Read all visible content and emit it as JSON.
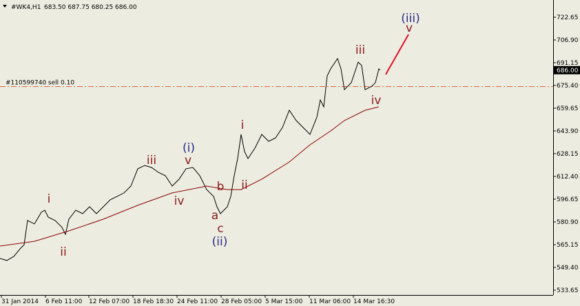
{
  "chart_data": {
    "type": "line",
    "symbol": "#WK4,H1",
    "ohlc": "683.50 687.75 680.25 686.00",
    "x": [
      0,
      10,
      20,
      30,
      35,
      40,
      50,
      60,
      65,
      70,
      80,
      90,
      95,
      100,
      110,
      120,
      130,
      140,
      150,
      160,
      170,
      180,
      190,
      200,
      210,
      220,
      230,
      240,
      250,
      260,
      270,
      280,
      290,
      300,
      310,
      315,
      320,
      330,
      335,
      340,
      345,
      350,
      355,
      360,
      370,
      380,
      390,
      400,
      410,
      420,
      430,
      440,
      450,
      460,
      465,
      470,
      475,
      480,
      490,
      495,
      500,
      510,
      520,
      525,
      530,
      540,
      545,
      550,
      552
    ],
    "series": [
      {
        "name": "price",
        "color": "#000000",
        "values": [
          555.6,
          554.2,
          557.0,
          562.7,
          565.1,
          581.9,
          579.5,
          587.6,
          589.0,
          584.2,
          581.9,
          577.1,
          572.3,
          582.8,
          589.0,
          586.6,
          591.4,
          586.6,
          591.4,
          596.2,
          598.6,
          601.0,
          605.7,
          617.7,
          620.0,
          618.6,
          615.2,
          612.9,
          605.7,
          610.5,
          617.7,
          618.6,
          612.9,
          603.3,
          598.6,
          591.4,
          586.6,
          591.4,
          598.6,
          612.9,
          624.8,
          641.5,
          629.6,
          624.8,
          631.9,
          641.5,
          636.7,
          639.1,
          646.3,
          658.2,
          651.1,
          646.3,
          641.5,
          653.4,
          665.4,
          660.6,
          682.1,
          686.9,
          694.0,
          686.9,
          672.5,
          677.4,
          691.6,
          689.3,
          672.5,
          674.9,
          677.4,
          686.9,
          686.0
        ]
      },
      {
        "name": "moving-average",
        "color": "#8b0000",
        "x": [
          0,
          50,
          100,
          150,
          200,
          250,
          300,
          330,
          350,
          380,
          420,
          450,
          480,
          500,
          530,
          550
        ],
        "values": [
          564.2,
          567.5,
          574.7,
          582.8,
          592.4,
          601.0,
          605.7,
          603.3,
          603.3,
          610.5,
          622.4,
          634.3,
          643.9,
          651.1,
          658.2,
          660.6
        ]
      }
    ],
    "xlim": [
      0,
      803
    ],
    "xticks": [
      {
        "value": 2,
        "label": "31 Jan 2014"
      },
      {
        "value": 66,
        "label": "6 Feb 11:00"
      },
      {
        "value": 129,
        "label": "12 Feb 07:00"
      },
      {
        "value": 193,
        "label": "18 Feb 18:30"
      },
      {
        "value": 257,
        "label": "24 Feb 11:00"
      },
      {
        "value": 321,
        "label": "28 Feb 05:00"
      },
      {
        "value": 385,
        "label": "5 Mar 15:00"
      },
      {
        "value": 449,
        "label": "11 Mar 06:00"
      },
      {
        "value": 513,
        "label": "14 Mar 16:30"
      }
    ],
    "ylim": [
      530.3,
      732.2
    ],
    "yticks": [
      722.65,
      {
        "value": 706.9,
        "label": "706.90"
      },
      691.15,
      {
        "value": 675.4,
        "label": "675.40"
      },
      659.65,
      {
        "value": 643.9,
        "label": "643.90"
      },
      628.15,
      {
        "value": 612.4,
        "label": "612.40"
      },
      596.65,
      {
        "value": 580.9,
        "label": "580.90"
      },
      565.15,
      {
        "value": 549.4,
        "label": "549.40"
      },
      533.65
    ],
    "last_price": {
      "value": 686,
      "label": "686.00"
    },
    "order_line": {
      "value": 674.6,
      "label": "#110599740 sell 0.10",
      "color": "#e0603a"
    },
    "annotations": [
      {
        "text": "i",
        "color": "#8b1a1a"
      },
      {
        "text": "ii",
        "color": "#8b1a1a"
      },
      {
        "text": "iii",
        "color": "#8b1a1a"
      },
      {
        "text": "(i)",
        "color": "#2a2a8a"
      },
      {
        "text": "v",
        "color": "#8b1a1a"
      },
      {
        "text": "iv",
        "color": "#8b1a1a"
      },
      {
        "text": "b",
        "color": "#8b1a1a"
      },
      {
        "text": "a",
        "color": "#8b1a1a"
      },
      {
        "text": "c",
        "color": "#8b1a1a"
      },
      {
        "text": "(ii)",
        "color": "#2a2a8a"
      },
      {
        "text": "i",
        "color": "#8b1a1a"
      },
      {
        "text": "ii",
        "color": "#8b1a1a"
      },
      {
        "text": "iii",
        "color": "#8b1a1a"
      },
      {
        "text": "iv",
        "color": "#8b1a1a"
      },
      {
        "text": "(iii)",
        "color": "#2a2a8a"
      },
      {
        "text": "v",
        "color": "#8b1a1a"
      }
    ]
  }
}
